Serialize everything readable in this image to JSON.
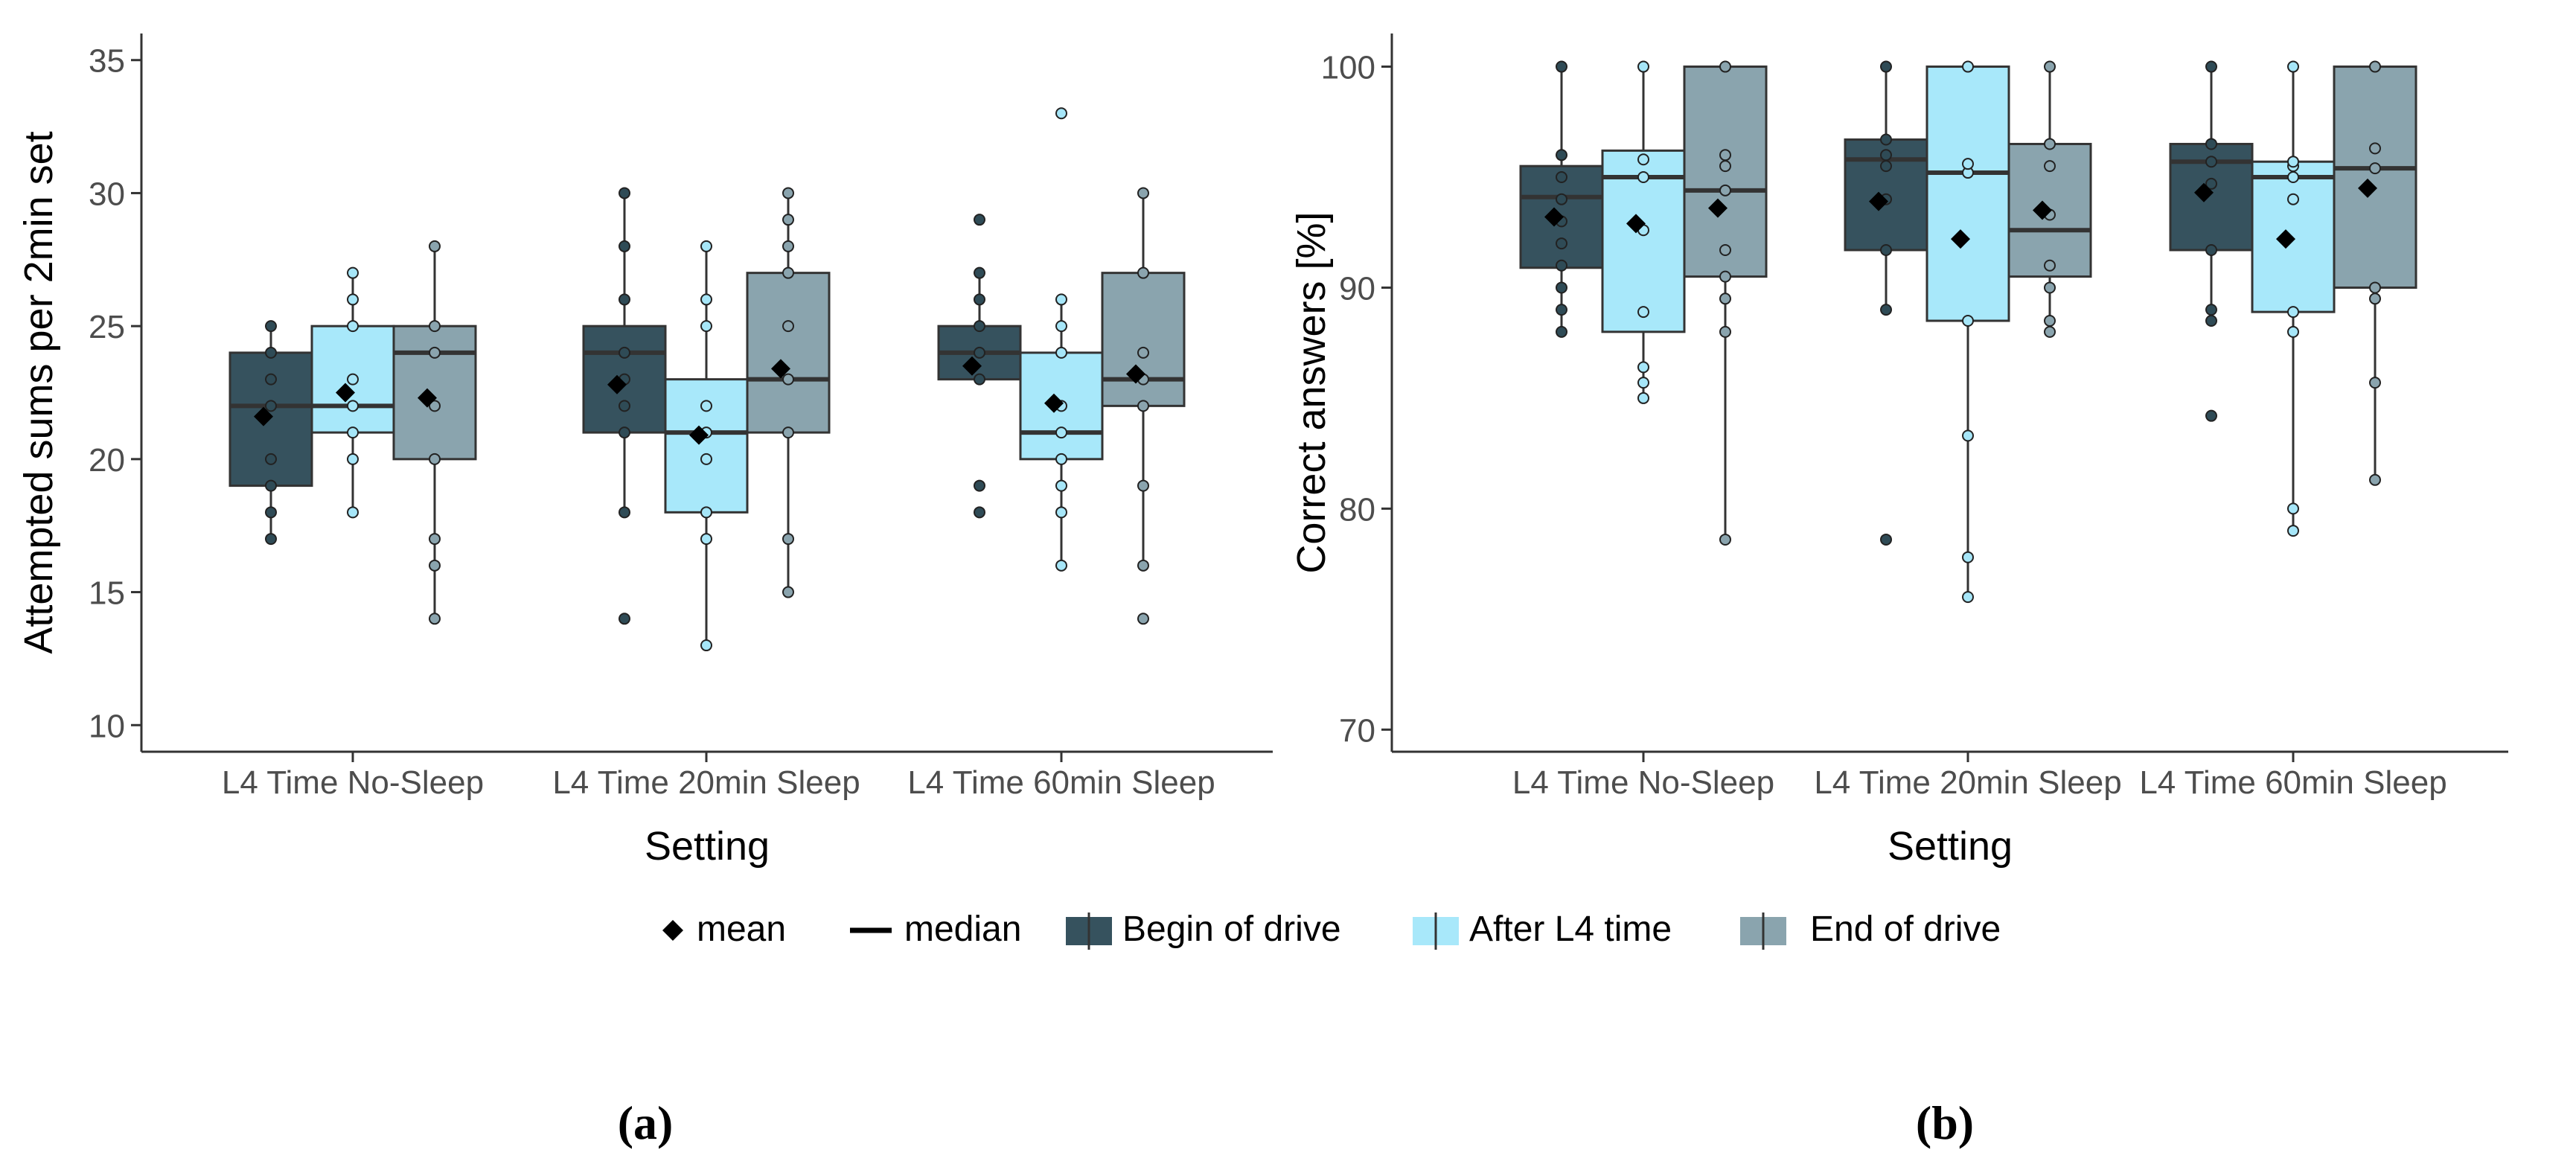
{
  "colors": {
    "begin": "#36525e",
    "after": "#a8e8fa",
    "end": "#8aa4ae",
    "begin_point": "#2f4b56",
    "after_point": "#a6e6f8",
    "end_point": "#8aa4ae",
    "axis": "#333333",
    "median": "#333333",
    "mean": "#000000",
    "outline": "#333333"
  },
  "legend": {
    "mean_label": "mean",
    "median_label": "median",
    "begin_label": "Begin of drive",
    "after_label": "After L4 time",
    "end_label": "End of drive"
  },
  "panel_labels": {
    "a": "(a)",
    "b": "(b)"
  },
  "chart_data": [
    {
      "panel": "(a)",
      "type": "boxplot",
      "title": "",
      "xlabel": "Setting",
      "ylabel": "Attempted sums per 2min set",
      "ylim": [
        9,
        36
      ],
      "yticks": [
        10,
        15,
        20,
        25,
        30,
        35
      ],
      "categories": [
        "L4 Time No-Sleep",
        "L4 Time 20min Sleep",
        "L4 Time 60min Sleep"
      ],
      "series": [
        {
          "name": "Begin of drive",
          "boxes": [
            {
              "q1": 19,
              "median": 22,
              "q3": 24,
              "whisker_low": 17,
              "whisker_high": 25,
              "mean": 21.6,
              "points": [
                17,
                18,
                19,
                20,
                22,
                23,
                24,
                25
              ]
            },
            {
              "q1": 21,
              "median": 24,
              "q3": 25,
              "whisker_low": 18,
              "whisker_high": 30,
              "mean": 22.8,
              "points": [
                14,
                18,
                21,
                22,
                23,
                24,
                26,
                28,
                30
              ]
            },
            {
              "q1": 23,
              "median": 24,
              "q3": 25,
              "whisker_low": 23,
              "whisker_high": 27,
              "mean": 23.5,
              "points": [
                18,
                19,
                23,
                24,
                25,
                26,
                27,
                29
              ]
            }
          ]
        },
        {
          "name": "After L4 time",
          "boxes": [
            {
              "q1": 21,
              "median": 22,
              "q3": 25,
              "whisker_low": 18,
              "whisker_high": 27,
              "mean": 22.5,
              "points": [
                18,
                20,
                21,
                22,
                23,
                25,
                26,
                27
              ]
            },
            {
              "q1": 18,
              "median": 21,
              "q3": 23,
              "whisker_low": 13,
              "whisker_high": 28,
              "mean": 20.9,
              "points": [
                13,
                17,
                18,
                20,
                21,
                22,
                25,
                26,
                28
              ]
            },
            {
              "q1": 20,
              "median": 21,
              "q3": 24,
              "whisker_low": 16,
              "whisker_high": 26,
              "mean": 22.1,
              "points": [
                16,
                18,
                19,
                20,
                21,
                22,
                24,
                25,
                26,
                33
              ]
            }
          ]
        },
        {
          "name": "End of drive",
          "boxes": [
            {
              "q1": 20,
              "median": 24,
              "q3": 25,
              "whisker_low": 14,
              "whisker_high": 28,
              "mean": 22.3,
              "points": [
                14,
                16,
                17,
                20,
                22,
                24,
                25,
                28
              ]
            },
            {
              "q1": 21,
              "median": 23,
              "q3": 27,
              "whisker_low": 15,
              "whisker_high": 30,
              "mean": 23.4,
              "points": [
                15,
                17,
                21,
                23,
                25,
                27,
                28,
                29,
                30
              ]
            },
            {
              "q1": 22,
              "median": 23,
              "q3": 27,
              "whisker_low": 16,
              "whisker_high": 30,
              "mean": 23.2,
              "points": [
                14,
                16,
                19,
                22,
                23,
                24,
                27,
                30
              ]
            }
          ]
        }
      ]
    },
    {
      "panel": "(b)",
      "type": "boxplot",
      "title": "",
      "xlabel": "Setting",
      "ylabel": "Correct answers [%]",
      "ylim": [
        69,
        101.5
      ],
      "yticks": [
        70,
        80,
        90,
        100
      ],
      "categories": [
        "L4 Time No-Sleep",
        "L4 Time 20min Sleep",
        "L4 Time 60min Sleep"
      ],
      "series": [
        {
          "name": "Begin of drive",
          "boxes": [
            {
              "q1": 90.9,
              "median": 94.1,
              "q3": 95.5,
              "whisker_low": 88,
              "whisker_high": 100,
              "mean": 93.2,
              "points": [
                88,
                89,
                90,
                91,
                92,
                93,
                94,
                95,
                96,
                100
              ]
            },
            {
              "q1": 91.7,
              "median": 95.8,
              "q3": 96.7,
              "whisker_low": 89,
              "whisker_high": 100,
              "mean": 93.9,
              "points": [
                78.6,
                89,
                91.7,
                94,
                95.5,
                96,
                96.7,
                100
              ]
            },
            {
              "q1": 91.7,
              "median": 95.7,
              "q3": 96.5,
              "whisker_low": 88.5,
              "whisker_high": 100,
              "mean": 94.3,
              "points": [
                84.2,
                88.5,
                89,
                91.7,
                94.7,
                95.7,
                96.5,
                100
              ]
            }
          ]
        },
        {
          "name": "After L4 time",
          "boxes": [
            {
              "q1": 88,
              "median": 95,
              "q3": 96.2,
              "whisker_low": 85,
              "whisker_high": 100,
              "mean": 92.9,
              "points": [
                85,
                85.7,
                86.4,
                88.9,
                92.6,
                95,
                95.8,
                100
              ]
            },
            {
              "q1": 88.5,
              "median": 95.2,
              "q3": 100,
              "whisker_low": 76,
              "whisker_high": 100,
              "mean": 92.2,
              "points": [
                76,
                77.8,
                83.3,
                88.5,
                95.2,
                95.6,
                100
              ]
            },
            {
              "q1": 88.9,
              "median": 95,
              "q3": 95.7,
              "whisker_low": 79,
              "whisker_high": 100,
              "mean": 92.2,
              "points": [
                79,
                80,
                88,
                88.9,
                94,
                95,
                95.5,
                95.7,
                100
              ]
            }
          ]
        },
        {
          "name": "End of drive",
          "boxes": [
            {
              "q1": 90.5,
              "median": 94.4,
              "q3": 100,
              "whisker_low": 78.6,
              "whisker_high": 100,
              "mean": 93.6,
              "points": [
                78.6,
                88,
                89.5,
                90.5,
                91.7,
                94.4,
                95.5,
                96,
                100
              ]
            },
            {
              "q1": 90.5,
              "median": 92.6,
              "q3": 96.5,
              "whisker_low": 88,
              "whisker_high": 100,
              "mean": 93.5,
              "points": [
                88,
                88.5,
                90,
                91,
                93.3,
                95.5,
                96.5,
                100
              ]
            },
            {
              "q1": 90,
              "median": 95.4,
              "q3": 100,
              "whisker_low": 81.3,
              "whisker_high": 100,
              "mean": 94.5,
              "points": [
                81.3,
                85.7,
                89.5,
                90,
                95.4,
                96.3,
                100
              ]
            }
          ]
        }
      ]
    }
  ]
}
